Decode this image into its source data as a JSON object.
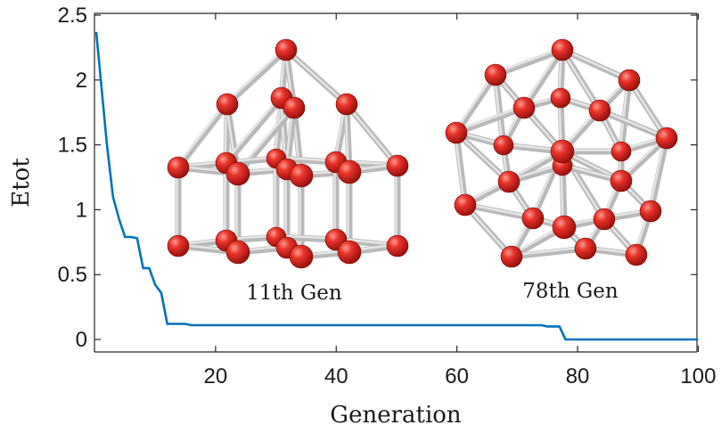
{
  "chart_data": {
    "type": "line",
    "xlabel": "Generation",
    "ylabel": "Etot",
    "xlim": [
      1,
      100
    ],
    "ylim": [
      -0.1,
      2.5
    ],
    "xticks": [
      "20",
      "40",
      "60",
      "80",
      "100"
    ],
    "yticks": [
      "0",
      "0.5",
      "1",
      "1.5",
      "2",
      "2.5"
    ],
    "grid": false,
    "line_color": "#0072BD",
    "series": [
      {
        "x": [
          1,
          2,
          3,
          4,
          5,
          6,
          7,
          8,
          9,
          10,
          11,
          12,
          13,
          15,
          16,
          17,
          20,
          30,
          40,
          50,
          60,
          70,
          74,
          75,
          77,
          78,
          79,
          80,
          90,
          100
        ],
        "y": [
          2.37,
          1.5,
          1.1,
          0.93,
          0.79,
          0.79,
          0.78,
          0.55,
          0.55,
          0.42,
          0.36,
          0.12,
          0.12,
          0.12,
          0.11,
          0.11,
          0.11,
          0.11,
          0.11,
          0.11,
          0.11,
          0.11,
          0.11,
          0.1,
          0.1,
          0.0,
          0.0,
          0.0,
          0.0,
          0.0
        ]
      }
    ],
    "annotations": [
      "11th Gen",
      "78th Gen"
    ]
  }
}
